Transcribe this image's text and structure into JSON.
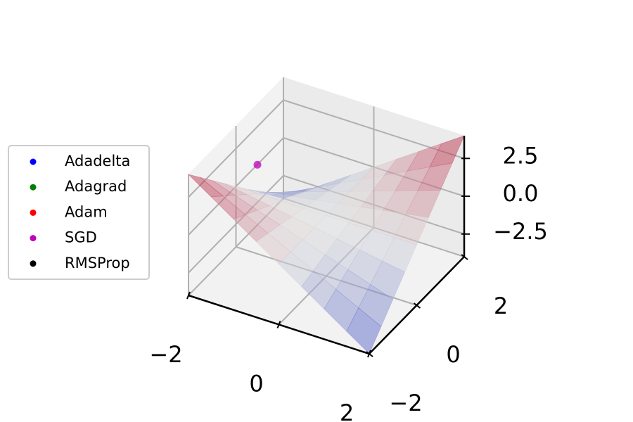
{
  "chart_data": {
    "type": "surface3d",
    "colormap": "coolwarm",
    "grid": true,
    "legend_position": "left",
    "xlim": [
      -2,
      2
    ],
    "ylim": [
      -2,
      2
    ],
    "zlim": [
      -4,
      4
    ],
    "xticks": [
      {
        "value": -2,
        "label": "−2"
      },
      0,
      2
    ],
    "yticks": [
      {
        "value": -2,
        "label": "−2"
      },
      0,
      2
    ],
    "zticks": [
      {
        "value": -2.5,
        "label": "−2.5"
      },
      {
        "value": 0,
        "label": "0.0"
      },
      2.5
    ],
    "surface": {
      "x": [
        -2,
        -1.5,
        -1,
        -0.5,
        0,
        0.5,
        1,
        1.5,
        2
      ],
      "y": [
        -2,
        -1.5,
        -1,
        -0.5,
        0,
        0.5,
        1,
        1.5,
        2
      ],
      "z": [
        [
          4,
          3,
          2,
          1,
          0,
          -1,
          -2,
          -3,
          -4
        ],
        [
          3,
          2.25,
          1.5,
          0.75,
          0,
          -0.75,
          -1.5,
          -2.25,
          -3
        ],
        [
          2,
          1.5,
          1,
          0.5,
          0,
          -0.5,
          -1,
          -1.5,
          -2
        ],
        [
          1,
          0.75,
          0.5,
          0.25,
          0,
          -0.25,
          -0.5,
          -0.75,
          -1
        ],
        [
          0,
          0,
          0,
          0,
          0,
          0,
          0,
          0,
          0
        ],
        [
          -1,
          -0.75,
          -0.5,
          -0.25,
          0,
          0.25,
          0.5,
          0.75,
          1
        ],
        [
          -2,
          -1.5,
          -1,
          -0.5,
          0,
          0.5,
          1,
          1.5,
          2
        ],
        [
          -3,
          -2.25,
          -1.5,
          -0.75,
          0,
          0.75,
          1.5,
          2.25,
          3
        ],
        [
          -4,
          -3,
          -2,
          -1,
          0,
          1,
          2,
          3,
          4
        ]
      ]
    },
    "series": [
      {
        "name": "Adadelta",
        "color": "#0000ff",
        "x": [],
        "y": [],
        "z": []
      },
      {
        "name": "Adagrad",
        "color": "#008000",
        "x": [],
        "y": [],
        "z": []
      },
      {
        "name": "Adam",
        "color": "#ff0000",
        "x": [],
        "y": [],
        "z": []
      },
      {
        "name": "SGD",
        "color": "#bf00bf",
        "x": [
          -1
        ],
        "y": [
          -1
        ],
        "z": [
          4
        ]
      },
      {
        "name": "RMSProp",
        "color": "#000000",
        "x": [],
        "y": [],
        "z": []
      }
    ]
  }
}
